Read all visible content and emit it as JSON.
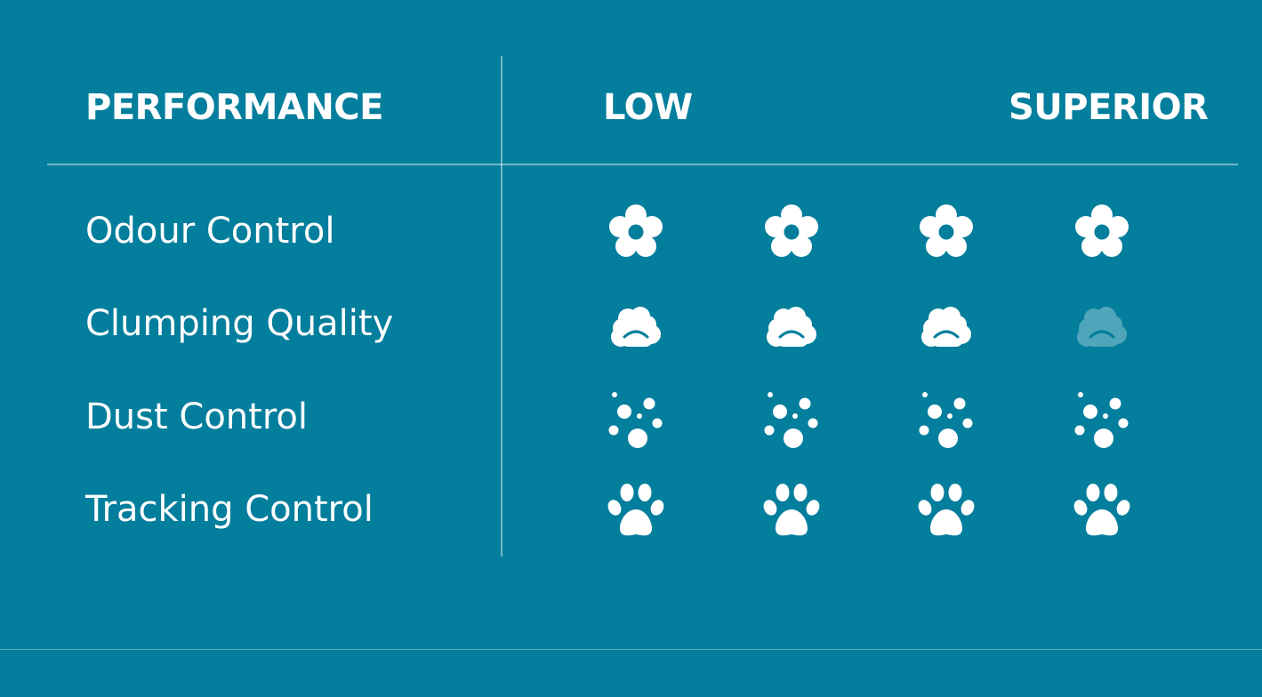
{
  "header": {
    "performance": "PERFORMANCE",
    "low": "LOW",
    "superior": "SUPERIOR"
  },
  "colors": {
    "background": "#037e9c",
    "foreground": "#ffffff"
  },
  "rows": [
    {
      "label": "Odour Control",
      "icon": "flower-icon",
      "rating": 4,
      "max": 4
    },
    {
      "label": "Clumping Quality",
      "icon": "clump-icon",
      "rating": 3,
      "max": 4
    },
    {
      "label": "Dust Control",
      "icon": "dust-icon",
      "rating": 4,
      "max": 4
    },
    {
      "label": "Tracking Control",
      "icon": "paw-icon",
      "rating": 4,
      "max": 4
    }
  ]
}
